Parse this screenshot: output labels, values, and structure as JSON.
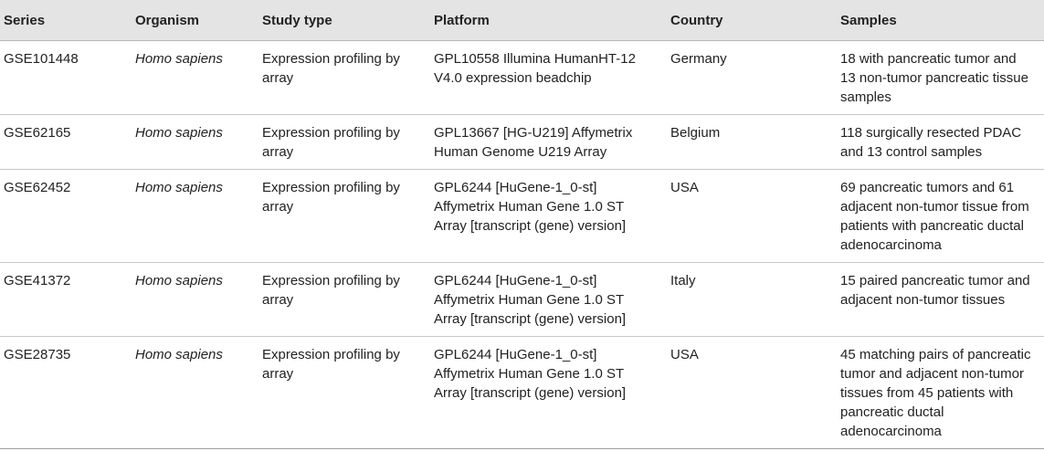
{
  "table": {
    "headers": [
      "Series",
      "Organism",
      "Study type",
      "Platform",
      "Country",
      "Samples"
    ],
    "rows": [
      {
        "series": "GSE101448",
        "organism": "Homo sapiens",
        "study_type": "Expression profiling by array",
        "platform": "GPL10558 Illumina HumanHT-12 V4.0 expression beadchip",
        "country": "Germany",
        "samples": "18 with pancreatic tumor and 13 non-tumor pancreatic tissue samples"
      },
      {
        "series": "GSE62165",
        "organism": "Homo sapiens",
        "study_type": "Expression profiling by array",
        "platform": "GPL13667 [HG-U219] Affymetrix Human Genome U219 Array",
        "country": "Belgium",
        "samples": "118 surgically resected PDAC and 13 control samples"
      },
      {
        "series": "GSE62452",
        "organism": "Homo sapiens",
        "study_type": "Expression profiling by array",
        "platform": "GPL6244 [HuGene-1_0-st] Affymetrix Human Gene 1.0 ST Array [transcript (gene) version]",
        "country": "USA",
        "samples": "69 pancreatic tumors and 61 adjacent non-tumor tissue from patients with pancreatic ductal adenocarcinoma"
      },
      {
        "series": "GSE41372",
        "organism": "Homo sapiens",
        "study_type": "Expression profiling by array",
        "platform": "GPL6244 [HuGene-1_0-st] Affymetrix Human Gene 1.0 ST Array [transcript (gene) version]",
        "country": "Italy",
        "samples": "15 paired pancreatic tumor and adjacent non-tumor tissues"
      },
      {
        "series": "GSE28735",
        "organism": "Homo sapiens",
        "study_type": "Expression profiling by array",
        "platform": "GPL6244 [HuGene-1_0-st] Affymetrix Human Gene 1.0 ST Array [transcript (gene) version]",
        "country": "USA",
        "samples": "45 matching pairs of pancreatic tumor and adjacent non-tumor tissues from 45 patients with pancreatic ductal adenocarcinoma"
      }
    ]
  }
}
